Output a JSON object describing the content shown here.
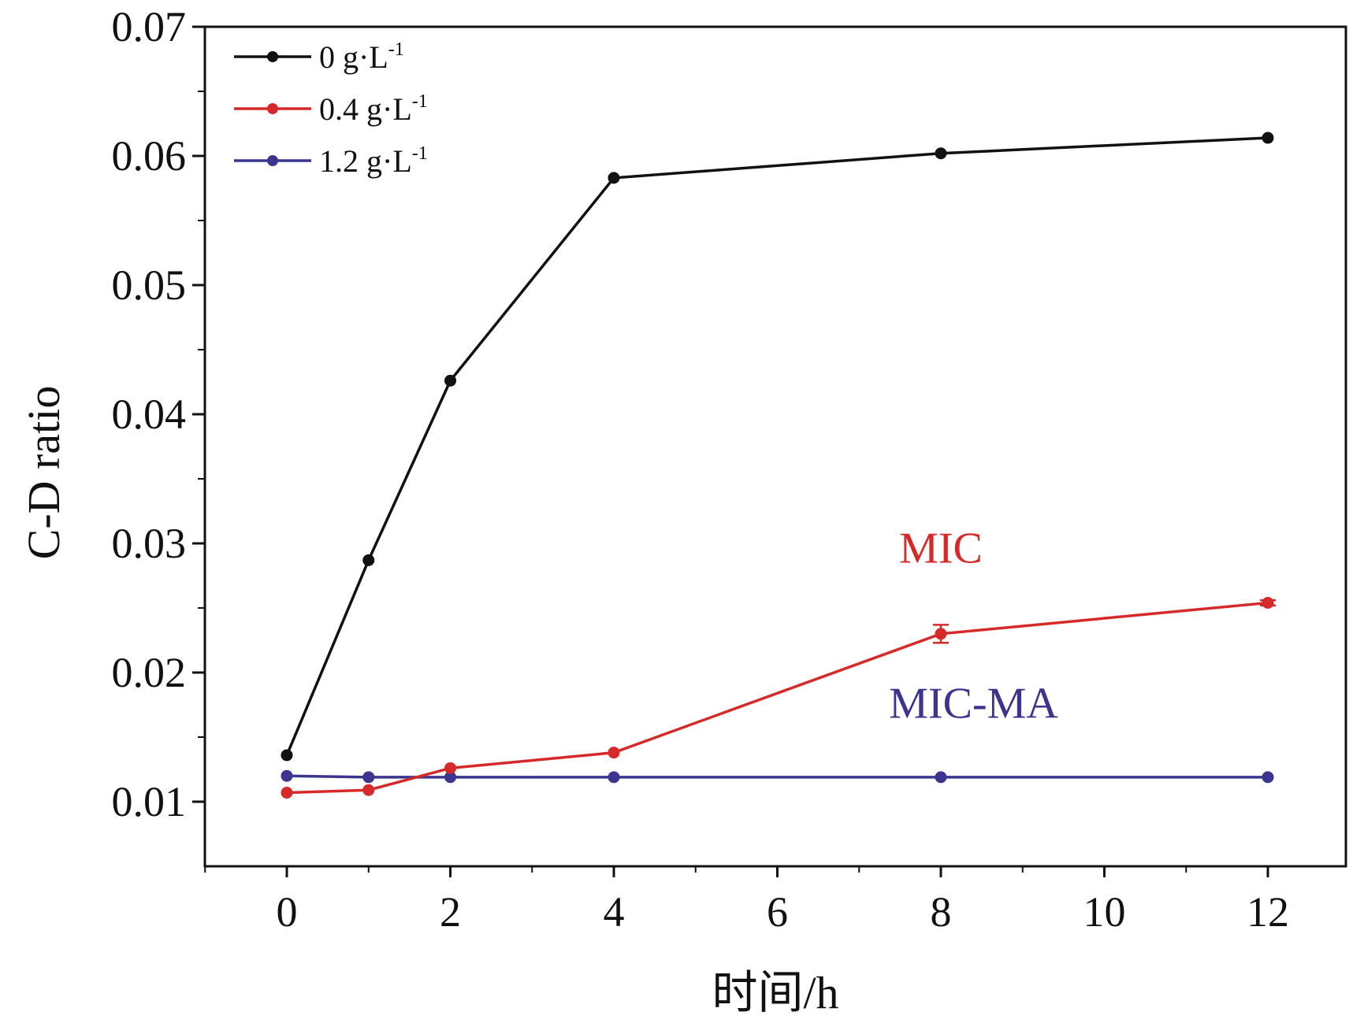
{
  "chart_data": {
    "type": "line",
    "title": "",
    "xlabel": "时间/h",
    "ylabel": "C-D ratio",
    "xlim": [
      -1,
      13
    ],
    "ylim": [
      0.005,
      0.07
    ],
    "x_ticks": [
      0,
      2,
      4,
      6,
      8,
      10,
      12
    ],
    "x_tick_labels": [
      "0",
      "2",
      "4",
      "6",
      "8",
      "10",
      "12"
    ],
    "y_ticks": [
      0.01,
      0.02,
      0.03,
      0.04,
      0.05,
      0.06,
      0.07
    ],
    "y_tick_labels": [
      "0.01",
      "0.02",
      "0.03",
      "0.04",
      "0.05",
      "0.06",
      "0.07"
    ],
    "grid": false,
    "legend_position": "top-left",
    "series": [
      {
        "name": "0 g·L",
        "name_sup": "-1",
        "color": "#111111",
        "x": [
          0,
          1,
          2,
          4,
          8,
          12
        ],
        "y": [
          0.0136,
          0.0287,
          0.0426,
          0.0583,
          0.0602,
          0.0614
        ]
      },
      {
        "name": "0.4 g·L",
        "name_sup": "-1",
        "color": "#d62a2a",
        "x": [
          0,
          1,
          2,
          4,
          8,
          12
        ],
        "y": [
          0.0107,
          0.0109,
          0.0126,
          0.0138,
          0.023,
          0.0254
        ],
        "error": [
          0,
          0,
          0,
          0,
          0.0007,
          0.0002
        ]
      },
      {
        "name": "1.2 g·L",
        "name_sup": "-1",
        "color": "#3b3590",
        "x": [
          0,
          1,
          2,
          4,
          8,
          12
        ],
        "y": [
          0.012,
          0.0119,
          0.0119,
          0.0119,
          0.0119,
          0.0119
        ]
      }
    ],
    "annotations": [
      {
        "text": "MIC",
        "color": "#d62a2a",
        "x": 8,
        "y": 0.0285
      },
      {
        "text": "MIC-MA",
        "color": "#3b3590",
        "x": 8.4,
        "y": 0.0165
      }
    ]
  }
}
